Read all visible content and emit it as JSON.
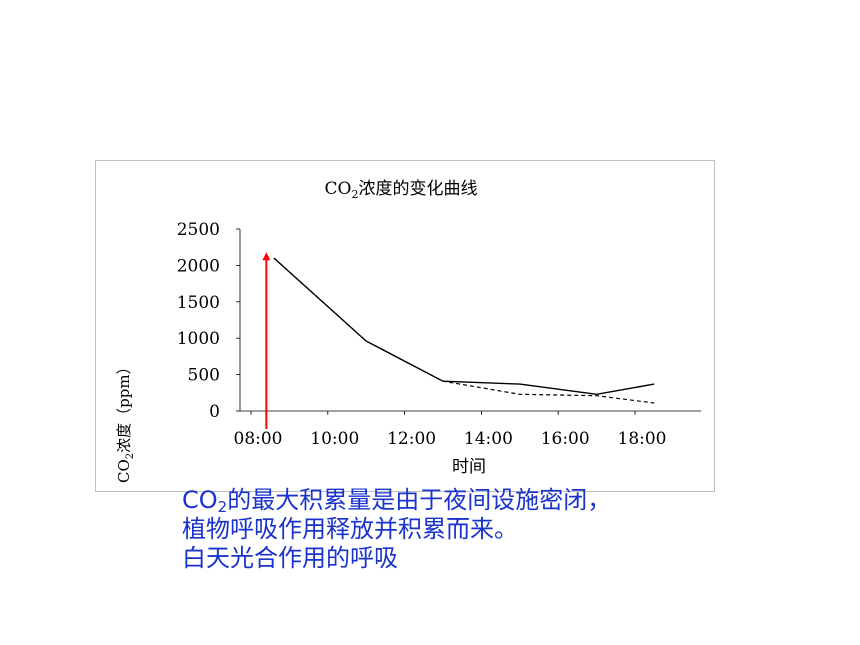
{
  "chart_data": {
    "type": "line",
    "title_main": "CO",
    "title_sub": "2",
    "title_rest": "浓度的变化曲线",
    "ylabel_main": "CO",
    "ylabel_sub": "2",
    "ylabel_rest": "浓度（ppm）",
    "xlabel": "时间",
    "x_ticks": [
      "08:00",
      "10:00",
      "12:00",
      "14:00",
      "16:00",
      "18:00"
    ],
    "y_ticks": [
      "0",
      "500",
      "1000",
      "1500",
      "2000",
      "2500"
    ],
    "ylim": [
      0,
      2500
    ],
    "xlim": [
      8,
      18.5
    ],
    "grid": false,
    "series": [
      {
        "style": "solid",
        "color": "#000000",
        "points": [
          [
            8.6,
            2100
          ],
          [
            11.0,
            960
          ],
          [
            13.0,
            410
          ],
          [
            15.0,
            370
          ],
          [
            17.0,
            230
          ],
          [
            18.5,
            370
          ]
        ]
      },
      {
        "style": "dashed",
        "color": "#000000",
        "points": [
          [
            8.6,
            2100
          ],
          [
            11.0,
            960
          ],
          [
            13.0,
            410
          ],
          [
            15.0,
            230
          ],
          [
            17.0,
            210
          ],
          [
            18.5,
            110
          ]
        ]
      }
    ],
    "annotations": [
      {
        "type": "arrow",
        "color": "#ff0000",
        "x": 8.4,
        "y_from": 0,
        "y_to": 2180
      }
    ]
  },
  "caption": {
    "line1_pre": "CO",
    "line1_sub": "2",
    "line1_rest": "的最大积累量是由于夜间设施密闭，",
    "line2": "植物呼吸作用释放并积累而来。",
    "line3": "白天光合作用的呼吸"
  }
}
